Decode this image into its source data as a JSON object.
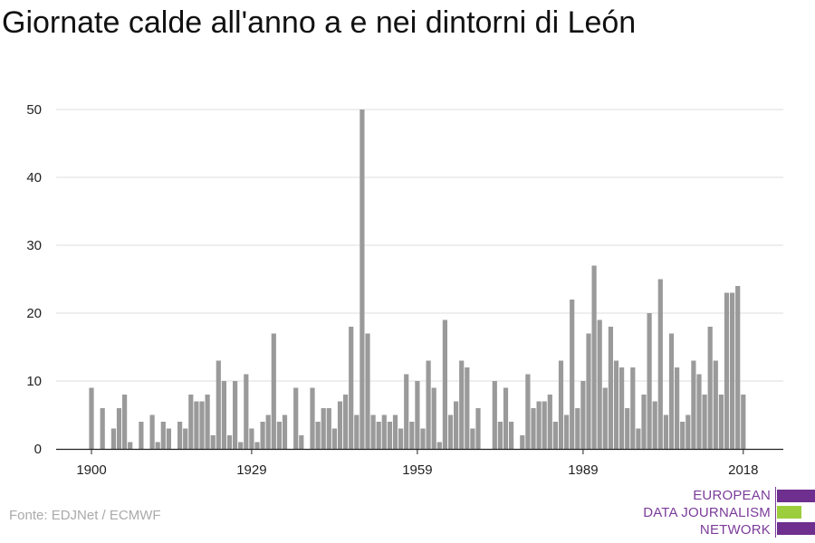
{
  "title": "Giornate calde all'anno a e nei dintorni di León",
  "source": "Fonte: EDJNet / ECMWF",
  "logo": {
    "line1": "EUROPEAN",
    "line2": "DATA JOURNALISM",
    "line3": "NETWORK",
    "bar_colors": [
      "#6e2f8e",
      "#9bcd3c",
      "#6e2f8e"
    ]
  },
  "colors": {
    "bar": "#9a9a9a",
    "grid": "#dddddd",
    "axis": "#222222",
    "text": "#222222"
  },
  "chart_data": {
    "type": "bar",
    "title": "Giornate calde all'anno a e nei dintorni di León",
    "xlabel": "",
    "ylabel": "",
    "ylim": [
      0,
      50
    ],
    "yticks": [
      0,
      10,
      20,
      30,
      40,
      50
    ],
    "xticks": [
      1900,
      1929,
      1959,
      1989,
      2018
    ],
    "grid": true,
    "x": [
      1900,
      1901,
      1902,
      1903,
      1904,
      1905,
      1906,
      1907,
      1908,
      1909,
      1910,
      1911,
      1912,
      1913,
      1914,
      1915,
      1916,
      1917,
      1918,
      1919,
      1920,
      1921,
      1922,
      1923,
      1924,
      1925,
      1926,
      1927,
      1928,
      1929,
      1930,
      1931,
      1932,
      1933,
      1934,
      1935,
      1936,
      1937,
      1938,
      1939,
      1940,
      1941,
      1942,
      1943,
      1944,
      1945,
      1946,
      1947,
      1948,
      1949,
      1950,
      1951,
      1952,
      1953,
      1954,
      1955,
      1956,
      1957,
      1958,
      1959,
      1960,
      1961,
      1962,
      1963,
      1964,
      1965,
      1966,
      1967,
      1968,
      1969,
      1970,
      1971,
      1972,
      1973,
      1974,
      1975,
      1976,
      1977,
      1978,
      1979,
      1980,
      1981,
      1982,
      1983,
      1984,
      1985,
      1986,
      1987,
      1988,
      1989,
      1990,
      1991,
      1992,
      1993,
      1994,
      1995,
      1996,
      1997,
      1998,
      1999,
      2000,
      2001,
      2002,
      2003,
      2004,
      2005,
      2006,
      2007,
      2008,
      2009,
      2010,
      2011,
      2012,
      2013,
      2014,
      2015,
      2016,
      2017,
      2018
    ],
    "values": [
      9,
      0,
      6,
      0,
      3,
      6,
      8,
      1,
      0,
      4,
      0,
      5,
      1,
      4,
      3,
      0,
      4,
      3,
      8,
      7,
      7,
      8,
      2,
      13,
      10,
      2,
      10,
      1,
      11,
      3,
      1,
      4,
      5,
      17,
      4,
      5,
      0,
      9,
      2,
      0,
      9,
      4,
      6,
      6,
      3,
      7,
      8,
      18,
      5,
      50,
      17,
      5,
      4,
      5,
      4,
      5,
      3,
      11,
      4,
      10,
      3,
      13,
      9,
      1,
      19,
      5,
      7,
      13,
      12,
      3,
      6,
      0,
      0,
      10,
      4,
      9,
      4,
      0,
      2,
      11,
      6,
      7,
      7,
      8,
      4,
      13,
      5,
      22,
      6,
      10,
      17,
      27,
      19,
      9,
      18,
      13,
      12,
      6,
      12,
      3,
      8,
      20,
      7,
      25,
      5,
      17,
      12,
      4,
      5,
      13,
      11,
      8,
      18,
      13,
      8,
      23,
      23,
      24,
      8
    ]
  }
}
